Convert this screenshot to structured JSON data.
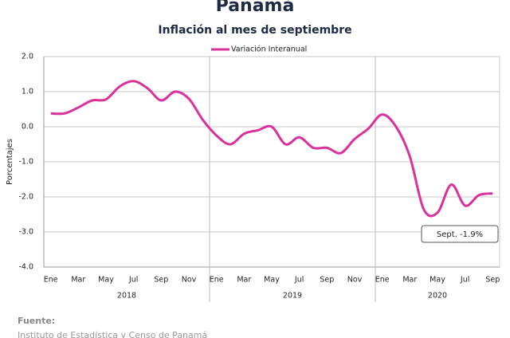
{
  "chart_data": {
    "type": "line",
    "title": "Panamá",
    "subtitle": "Inflación al mes de septiembre",
    "y_label": "Porcentajes",
    "categories": [
      "Ene",
      null,
      "Mar",
      null,
      "May",
      null,
      "Jul",
      null,
      "Sep",
      null,
      "Nov",
      null,
      "Ene",
      null,
      "Mar",
      null,
      "May",
      null,
      "Jul",
      null,
      "Sep",
      null,
      "Nov",
      null,
      "Ene",
      null,
      "Mar",
      null,
      "May",
      null,
      "Jul",
      null,
      "Sep"
    ],
    "years": [
      "2018",
      "2019",
      "2020"
    ],
    "series": [
      {
        "name": "Variación Interanual",
        "color": "#d9329c",
        "values": [
          0.38,
          0.38,
          0.55,
          0.75,
          0.78,
          1.15,
          1.3,
          1.1,
          0.75,
          1.0,
          0.8,
          0.2,
          -0.25,
          -0.5,
          -0.2,
          -0.1,
          0.0,
          -0.5,
          -0.3,
          -0.6,
          -0.6,
          -0.75,
          -0.35,
          -0.05,
          0.35,
          0.0,
          -0.85,
          -2.35,
          -2.45,
          -1.65,
          -2.25,
          -1.95,
          -1.9
        ]
      }
    ],
    "ylim": [
      -4.0,
      2.0
    ],
    "yticks": [
      {
        "value": -4,
        "label": "-4.0"
      },
      {
        "value": -3,
        "label": "-3.0"
      },
      {
        "value": -2,
        "label": "-2.0"
      },
      {
        "value": -1,
        "label": "-1.0"
      },
      {
        "value": 0,
        "label": "0.0"
      },
      {
        "value": 1,
        "label": "1.0"
      },
      {
        "value": 2,
        "label": "2.0"
      }
    ],
    "grid": true,
    "annotation": "Sept. -1.9%",
    "source_label": "Fuente:",
    "source": "Instituto de Estadística y Censo de Panamá"
  }
}
